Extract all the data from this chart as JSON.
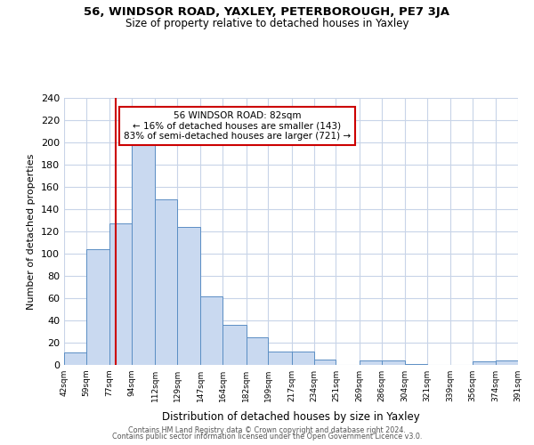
{
  "title1": "56, WINDSOR ROAD, YAXLEY, PETERBOROUGH, PE7 3JA",
  "title2": "Size of property relative to detached houses in Yaxley",
  "xlabel": "Distribution of detached houses by size in Yaxley",
  "ylabel": "Number of detached properties",
  "bin_edges": [
    42,
    59,
    77,
    94,
    112,
    129,
    147,
    164,
    182,
    199,
    217,
    234,
    251,
    269,
    286,
    304,
    321,
    339,
    356,
    374,
    391
  ],
  "bin_counts": [
    11,
    104,
    127,
    199,
    149,
    124,
    62,
    36,
    25,
    12,
    12,
    5,
    0,
    4,
    4,
    1,
    0,
    0,
    3,
    4
  ],
  "bar_facecolor": "#c9d9f0",
  "bar_edgecolor": "#5b8ec4",
  "vline_x": 82,
  "vline_color": "#cc0000",
  "annotation_title": "56 WINDSOR ROAD: 82sqm",
  "annotation_line1": "← 16% of detached houses are smaller (143)",
  "annotation_line2": "83% of semi-detached houses are larger (721) →",
  "annotation_box_edgecolor": "#cc0000",
  "annotation_box_facecolor": "#ffffff",
  "ylim": [
    0,
    240
  ],
  "yticks": [
    0,
    20,
    40,
    60,
    80,
    100,
    120,
    140,
    160,
    180,
    200,
    220,
    240
  ],
  "tick_labels": [
    "42sqm",
    "59sqm",
    "77sqm",
    "94sqm",
    "112sqm",
    "129sqm",
    "147sqm",
    "164sqm",
    "182sqm",
    "199sqm",
    "217sqm",
    "234sqm",
    "251sqm",
    "269sqm",
    "286sqm",
    "304sqm",
    "321sqm",
    "339sqm",
    "356sqm",
    "374sqm",
    "391sqm"
  ],
  "footer1": "Contains HM Land Registry data © Crown copyright and database right 2024.",
  "footer2": "Contains public sector information licensed under the Open Government Licence v3.0.",
  "background_color": "#ffffff",
  "grid_color": "#c8d4e8"
}
